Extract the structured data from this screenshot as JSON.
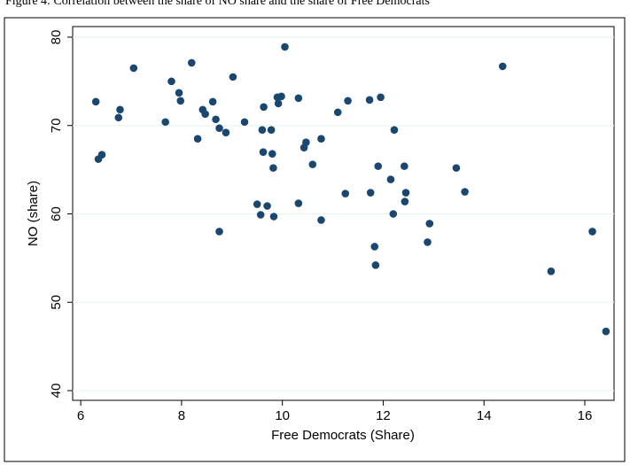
{
  "caption": "Figure 4: Correlation between the share of NO share and the share of Free Democrats",
  "chart_data": {
    "type": "scatter",
    "x_label": "Free Democrats (Share)",
    "y_label": "NO (share)",
    "xlim": [
      5.84,
      16.58
    ],
    "ylim": [
      38.9,
      81.2
    ],
    "xticks": [
      6,
      8,
      10,
      12,
      14,
      16
    ],
    "yticks": [
      40,
      50,
      60,
      70,
      80
    ],
    "grid": true,
    "color": "#1a476f",
    "x": [
      6.3,
      6.35,
      6.42,
      6.75,
      6.78,
      7.05,
      7.68,
      7.8,
      7.95,
      7.98,
      8.2,
      8.32,
      8.42,
      8.47,
      8.62,
      8.68,
      8.75,
      8.75,
      8.88,
      9.02,
      9.25,
      9.5,
      9.57,
      9.6,
      9.62,
      9.63,
      9.7,
      9.78,
      9.8,
      9.82,
      9.83,
      9.9,
      9.92,
      9.98,
      10.05,
      10.32,
      10.32,
      10.43,
      10.47,
      10.6,
      10.77,
      10.77,
      11.1,
      11.25,
      11.3,
      11.73,
      11.75,
      11.83,
      11.85,
      11.9,
      11.95,
      12.15,
      12.2,
      12.22,
      12.42,
      12.43,
      12.45,
      12.88,
      12.92,
      13.45,
      13.62,
      14.37,
      15.33,
      16.15,
      16.42
    ],
    "values": [
      72.7,
      66.2,
      66.7,
      70.9,
      71.8,
      76.5,
      70.4,
      75.0,
      73.7,
      72.8,
      77.1,
      68.5,
      71.8,
      71.3,
      72.7,
      70.7,
      69.7,
      58.0,
      69.2,
      75.5,
      70.4,
      61.1,
      59.9,
      69.5,
      67.0,
      72.1,
      60.9,
      69.5,
      66.8,
      65.2,
      59.7,
      73.2,
      72.5,
      73.3,
      78.9,
      73.1,
      61.2,
      67.5,
      68.1,
      65.6,
      68.5,
      59.3,
      71.5,
      62.3,
      72.8,
      72.9,
      62.4,
      56.3,
      54.2,
      65.4,
      73.2,
      63.9,
      60.0,
      69.5,
      65.4,
      61.4,
      62.4,
      56.8,
      58.9,
      65.2,
      62.5,
      76.7,
      53.5,
      58.0,
      46.7
    ]
  }
}
